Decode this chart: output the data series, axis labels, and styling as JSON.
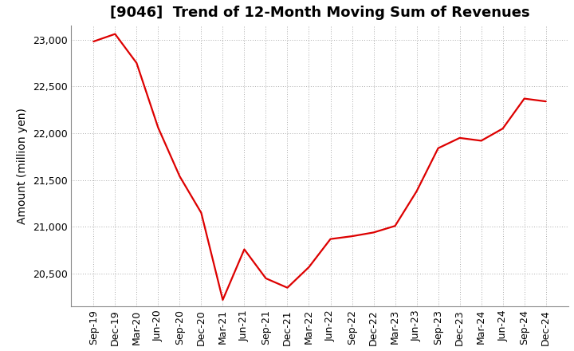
{
  "title": "[9046]  Trend of 12-Month Moving Sum of Revenues",
  "ylabel": "Amount (million yen)",
  "line_color": "#dd0000",
  "background_color": "#ffffff",
  "plot_bg_color": "#ffffff",
  "grid_color": "#888888",
  "x_labels": [
    "Sep-19",
    "Dec-19",
    "Mar-20",
    "Jun-20",
    "Sep-20",
    "Dec-20",
    "Mar-21",
    "Jun-21",
    "Sep-21",
    "Dec-21",
    "Mar-22",
    "Jun-22",
    "Sep-22",
    "Dec-22",
    "Mar-23",
    "Jun-23",
    "Sep-23",
    "Dec-23",
    "Mar-24",
    "Jun-24",
    "Sep-24",
    "Dec-24"
  ],
  "y_values": [
    22980,
    23060,
    22750,
    22060,
    21540,
    21150,
    20220,
    20760,
    20450,
    20350,
    20570,
    20870,
    20900,
    20940,
    21010,
    21380,
    21840,
    21950,
    21920,
    22050,
    22370,
    22340
  ],
  "ylim": [
    20150,
    23150
  ],
  "yticks": [
    20500,
    21000,
    21500,
    22000,
    22500,
    23000
  ],
  "title_fontsize": 13,
  "label_fontsize": 10,
  "tick_fontsize": 9
}
